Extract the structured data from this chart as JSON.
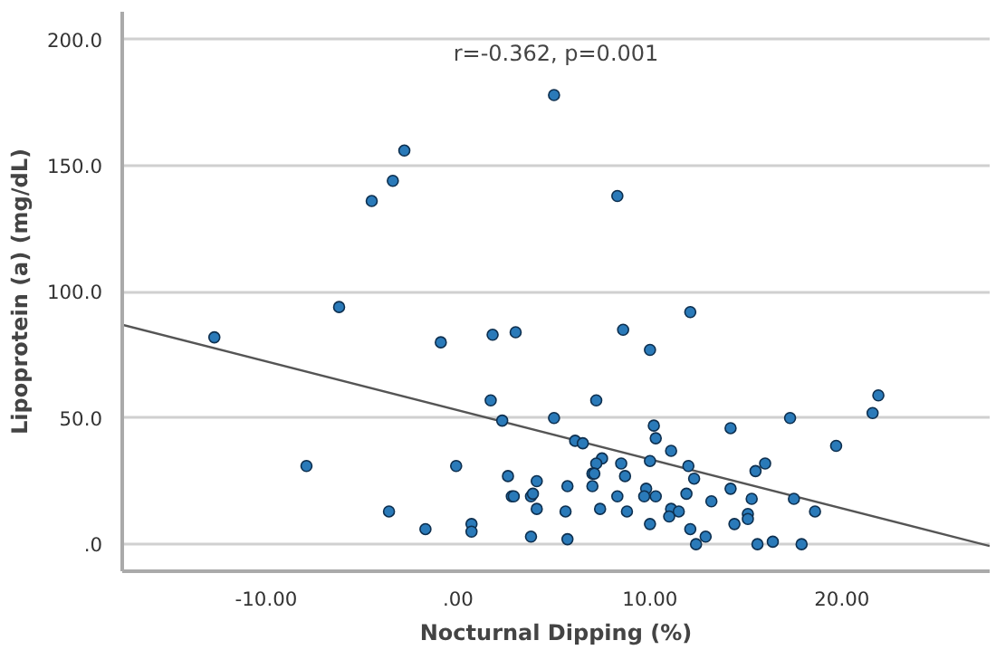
{
  "chart_data": {
    "type": "scatter",
    "xlabel": "Nocturnal Dipping (%)",
    "ylabel": "Lipoprotein (a) (mg/dL)",
    "annotations": [
      "r=-0.362, p=0.001"
    ],
    "xlim": [
      -17.5,
      27.7
    ],
    "ylim": [
      -10.7,
      211
    ],
    "xticks": [
      {
        "value": -10,
        "label": "-10.00"
      },
      {
        "value": 0,
        "label": ".00"
      },
      {
        "value": 10,
        "label": "10.00"
      },
      {
        "value": 20,
        "label": "20.00"
      }
    ],
    "yticks": [
      {
        "value": 0,
        "label": ".0"
      },
      {
        "value": 50,
        "label": "50.0"
      },
      {
        "value": 100,
        "label": "100.0"
      },
      {
        "value": 150,
        "label": "150.0"
      },
      {
        "value": 200,
        "label": "200.0"
      }
    ],
    "grid": "y",
    "marker": "circle",
    "series": [
      {
        "type": "line",
        "marker": "none",
        "color": "#555555",
        "x": [
          -17.5,
          27.7
        ],
        "values": [
          87,
          -0.7
        ]
      },
      {
        "color": "#2a7ab9",
        "x": [
          -4.5,
          -3.4,
          -2.8,
          -6.2,
          5.0,
          8.3,
          12.1,
          -12.7,
          -0.9,
          1.8,
          1.7,
          2.3,
          -7.9,
          -0.1,
          2.6,
          2.8,
          -3.6,
          -1.7,
          0.7,
          0.7,
          3.0,
          8.6,
          10.0,
          7.2,
          5.0,
          10.2,
          10.3,
          14.2,
          17.3,
          21.6,
          21.9,
          19.7,
          6.1,
          6.5,
          11.1,
          7.5,
          7.2,
          10.0,
          8.5,
          12.0,
          16.0,
          15.5,
          7.0,
          7.1,
          8.7,
          12.3,
          4.1,
          5.7,
          7.0,
          9.8,
          14.2,
          11.9,
          10.3,
          9.7,
          8.3,
          3.8,
          2.9,
          3.9,
          15.3,
          17.5,
          13.2,
          4.1,
          5.6,
          7.4,
          8.8,
          11.1,
          11.5,
          11.0,
          15.1,
          15.1,
          18.6,
          10.0,
          14.4,
          12.1,
          3.8,
          5.7,
          12.9,
          12.4,
          15.6,
          16.4,
          17.9
        ],
        "values": [
          136,
          144,
          156,
          94,
          178,
          138,
          92,
          82,
          80,
          83,
          57,
          49,
          31,
          31,
          27,
          19,
          13,
          6,
          8,
          5,
          84,
          85,
          77,
          57,
          50,
          47,
          42,
          46,
          50,
          52,
          59,
          39,
          41,
          40,
          37,
          34,
          32,
          33,
          32,
          31,
          32,
          29,
          28,
          28,
          27,
          26,
          25,
          23,
          23,
          22,
          22,
          20,
          19,
          19,
          19,
          19,
          19,
          20,
          18,
          18,
          17,
          14,
          13,
          14,
          13,
          14,
          13,
          11,
          12,
          10,
          13,
          8,
          8,
          6,
          3,
          2,
          3,
          0,
          0,
          1,
          0
        ]
      }
    ]
  }
}
